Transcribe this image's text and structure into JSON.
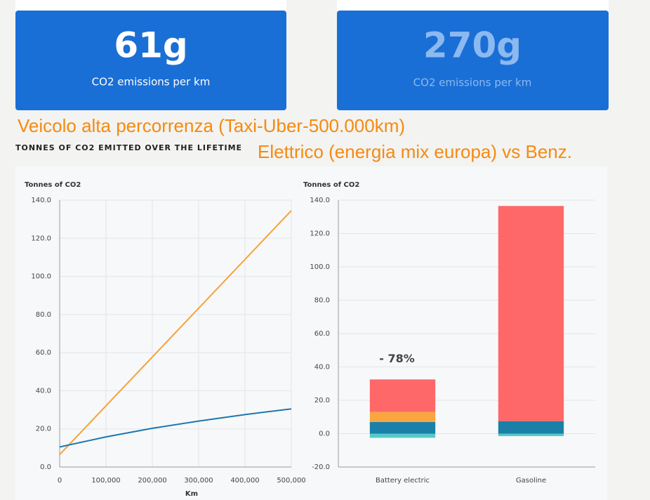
{
  "cards": [
    {
      "value": "61g",
      "label": "CO2 emissions per km"
    },
    {
      "value": "270g",
      "label": "CO2 emissions per km"
    }
  ],
  "overlay": [
    "Veicolo alta percorrenza (Taxi-Uber-500.000km)",
    "Elettrico (energia mix europa) vs Benz."
  ],
  "section_title": "TONNES OF CO2 EMITTED OVER THE LIFETIME",
  "chart_data": [
    {
      "type": "line",
      "y_label": "Tonnes of CO2",
      "x_label": "Km",
      "x": [
        0,
        100000,
        200000,
        300000,
        400000,
        500000
      ],
      "series": [
        {
          "color": "#f5a33b",
          "values": [
            6.5,
            32.1,
            57.7,
            83.3,
            108.9,
            134.5
          ]
        },
        {
          "color": "#1b78b0",
          "values": [
            10.5,
            15.8,
            20.3,
            24.1,
            27.5,
            30.5
          ]
        }
      ],
      "xlim": [
        0,
        500000
      ],
      "xticks": [
        0,
        {
          "value": 100000,
          "label": "100,000"
        },
        {
          "value": 200000,
          "label": "200,000"
        },
        {
          "value": 300000,
          "label": "300,000"
        },
        {
          "value": 400000,
          "label": "400,000"
        },
        {
          "value": 500000,
          "label": "500,000"
        }
      ],
      "ylim": [
        0,
        140
      ],
      "yticks": [
        {
          "value": 0,
          "label": "0.0"
        },
        {
          "value": 20,
          "label": "20.0"
        },
        {
          "value": 40,
          "label": "40.0"
        },
        {
          "value": 60,
          "label": "60.0"
        },
        {
          "value": 80,
          "label": "80.0"
        },
        {
          "value": 100,
          "label": "100.0"
        },
        {
          "value": 120,
          "label": "120.0"
        },
        {
          "value": 140,
          "label": "140.0"
        }
      ],
      "grid": true
    },
    {
      "type": "stacked_bar",
      "y_label": "Tonnes of CO2",
      "categories": [
        "Battery electric",
        "Gasoline"
      ],
      "series": [
        {
          "color": "#56c9c9",
          "values": [
            -2.5,
            -1.5
          ]
        },
        {
          "color": "#1a80a8",
          "values": [
            7,
            7.5
          ]
        },
        {
          "color": "#f9a640",
          "values": [
            6,
            0
          ]
        },
        {
          "color": "#fe6868",
          "values": [
            19.5,
            129
          ]
        }
      ],
      "annotation": "- 78%",
      "ylim": [
        -20,
        140
      ],
      "yticks": [
        {
          "value": -20,
          "label": "-20.0"
        },
        {
          "value": 0,
          "label": "0.0"
        },
        {
          "value": 20,
          "label": "20.0"
        },
        {
          "value": 40,
          "label": "40.0"
        },
        {
          "value": 60,
          "label": "60.0"
        },
        {
          "value": 80,
          "label": "80.0"
        },
        {
          "value": 100,
          "label": "100.0"
        },
        {
          "value": 120,
          "label": "120.0"
        },
        {
          "value": 140,
          "label": "140.0"
        }
      ],
      "grid": true
    }
  ]
}
